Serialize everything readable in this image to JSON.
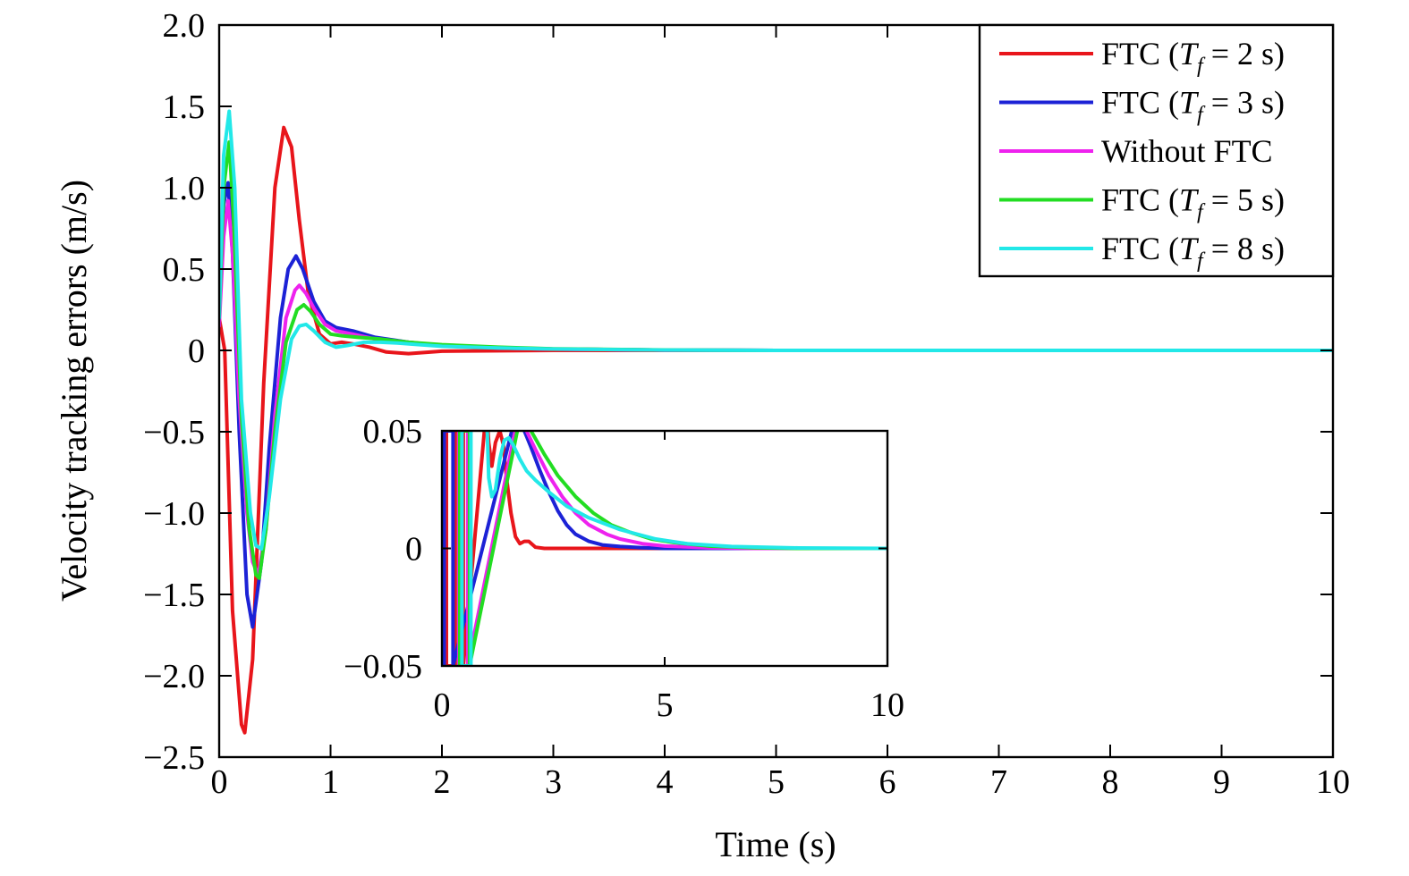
{
  "chart_data": {
    "type": "line",
    "xlabel": "Time (s)",
    "ylabel": "Velocity tracking errors (m/s)",
    "xlim": [
      0,
      10
    ],
    "ylim": [
      -2.5,
      2.0
    ],
    "xticks": [
      "0",
      "1",
      "2",
      "3",
      "4",
      "5",
      "6",
      "7",
      "8",
      "9",
      "10"
    ],
    "yticks": [
      "2.0",
      "1.5",
      "1.0",
      "0.5",
      "0",
      "−0.5",
      "−1.0",
      "−1.5",
      "−2.0",
      "−2.5"
    ],
    "ytick_values": [
      2.0,
      1.5,
      1.0,
      0.5,
      0,
      -0.5,
      -1.0,
      -1.5,
      -2.0,
      -2.5
    ],
    "grid": false,
    "legend_position": "top-right",
    "series": [
      {
        "name": "FTC (",
        "name_var": "T",
        "name_sub": "f",
        "name_tail": " = 2 s)",
        "color": "#e8151b",
        "x": [
          0,
          0.05,
          0.12,
          0.2,
          0.23,
          0.3,
          0.4,
          0.5,
          0.58,
          0.65,
          0.72,
          0.8,
          0.9,
          1.0,
          1.1,
          1.2,
          1.35,
          1.5,
          1.7,
          2.0,
          3.0,
          4.0,
          10.0
        ],
        "y": [
          0.2,
          0.0,
          -1.6,
          -2.3,
          -2.35,
          -1.9,
          -0.2,
          1.0,
          1.37,
          1.25,
          0.8,
          0.35,
          0.1,
          0.04,
          0.05,
          0.04,
          0.02,
          -0.01,
          -0.02,
          -0.005,
          0.0,
          0.0,
          0.0
        ]
      },
      {
        "name": "FTC (",
        "name_var": "T",
        "name_sub": "f",
        "name_tail": " = 3 s)",
        "color": "#1c22d6",
        "x": [
          0,
          0.04,
          0.08,
          0.12,
          0.18,
          0.25,
          0.3,
          0.38,
          0.45,
          0.55,
          0.62,
          0.69,
          0.75,
          0.85,
          0.95,
          1.05,
          1.2,
          1.4,
          1.7,
          2.0,
          2.5,
          3.0,
          4.0,
          5.0,
          10.0
        ],
        "y": [
          0.3,
          0.9,
          1.03,
          0.6,
          -0.5,
          -1.5,
          -1.7,
          -1.3,
          -0.6,
          0.2,
          0.5,
          0.58,
          0.5,
          0.3,
          0.18,
          0.14,
          0.12,
          0.08,
          0.05,
          0.03,
          0.015,
          0.008,
          0.002,
          0.0,
          0.0
        ]
      },
      {
        "name": "Without FTC",
        "name_var": "",
        "name_sub": "",
        "name_tail": "",
        "color": "#ee22ee",
        "x": [
          0,
          0.04,
          0.08,
          0.12,
          0.18,
          0.25,
          0.3,
          0.35,
          0.42,
          0.5,
          0.6,
          0.68,
          0.72,
          0.78,
          0.85,
          0.95,
          1.05,
          1.2,
          1.4,
          1.7,
          2.0,
          2.5,
          3.0,
          4.0,
          5.0,
          10.0
        ],
        "y": [
          0.15,
          0.7,
          0.92,
          0.6,
          -0.3,
          -1.0,
          -1.3,
          -1.38,
          -1.1,
          -0.4,
          0.2,
          0.37,
          0.4,
          0.35,
          0.26,
          0.16,
          0.12,
          0.1,
          0.07,
          0.05,
          0.03,
          0.015,
          0.008,
          0.002,
          0.0,
          0.0
        ]
      },
      {
        "name": "FTC (",
        "name_var": "T",
        "name_sub": "f",
        "name_tail": " = 5 s)",
        "color": "#22dd22",
        "x": [
          0,
          0.04,
          0.09,
          0.13,
          0.2,
          0.27,
          0.33,
          0.36,
          0.42,
          0.5,
          0.6,
          0.7,
          0.76,
          0.82,
          0.9,
          1.0,
          1.1,
          1.25,
          1.45,
          1.7,
          2.0,
          2.5,
          3.0,
          4.0,
          5.0,
          10.0
        ],
        "y": [
          0.2,
          1.0,
          1.28,
          0.8,
          -0.4,
          -1.1,
          -1.38,
          -1.4,
          -1.1,
          -0.5,
          0.05,
          0.25,
          0.28,
          0.24,
          0.16,
          0.1,
          0.09,
          0.08,
          0.07,
          0.05,
          0.035,
          0.02,
          0.01,
          0.003,
          0.0,
          0.0
        ]
      },
      {
        "name": "FTC (",
        "name_var": "T",
        "name_sub": "f",
        "name_tail": " = 8 s)",
        "color": "#22e8e8",
        "x": [
          0,
          0.04,
          0.09,
          0.14,
          0.2,
          0.28,
          0.33,
          0.38,
          0.45,
          0.55,
          0.65,
          0.72,
          0.78,
          0.85,
          0.95,
          1.05,
          1.15,
          1.3,
          1.45,
          1.6,
          1.8,
          2.0,
          2.5,
          3.0,
          4.0,
          5.0,
          10.0
        ],
        "y": [
          0.2,
          1.2,
          1.47,
          1.0,
          -0.3,
          -1.0,
          -1.2,
          -1.22,
          -0.9,
          -0.3,
          0.07,
          0.15,
          0.16,
          0.12,
          0.05,
          0.02,
          0.03,
          0.05,
          0.05,
          0.045,
          0.035,
          0.025,
          0.015,
          0.008,
          0.002,
          0.0,
          0.0
        ]
      }
    ],
    "inset": {
      "xlim": [
        0,
        10
      ],
      "ylim": [
        -0.05,
        0.05
      ],
      "xticks": [
        "0",
        "5",
        "10"
      ],
      "xtick_values": [
        0,
        5,
        10
      ],
      "yticks": [
        "0.05",
        "0",
        "−0.05"
      ],
      "ytick_values": [
        0.05,
        0,
        -0.05
      ],
      "series": [
        {
          "color": "#e8151b",
          "x": [
            0.1,
            0.1,
            0.3,
            0.3,
            0.48,
            0.48,
            1.0,
            1.05,
            1.12,
            1.2,
            1.3,
            1.38,
            1.45,
            1.55,
            1.65,
            1.75,
            1.85,
            1.95,
            2.1,
            2.3,
            2.5,
            3.0,
            4.0,
            10.0
          ],
          "y": [
            0.05,
            -0.05,
            -0.05,
            0.05,
            0.05,
            -0.05,
            0.06,
            0.045,
            0.035,
            0.045,
            0.05,
            0.044,
            0.03,
            0.015,
            0.005,
            0.002,
            0.003,
            0.003,
            0.0005,
            0.0,
            0.0,
            0.0,
            0.0,
            0.0
          ]
        },
        {
          "color": "#1c22d6",
          "x": [
            0.05,
            0.05,
            0.25,
            0.25,
            1.7,
            1.85,
            2.0,
            2.2,
            2.4,
            2.6,
            2.8,
            3.0,
            3.3,
            3.6,
            4.0,
            4.5,
            5.0,
            6.0,
            10.0
          ],
          "y": [
            -0.05,
            0.05,
            0.05,
            -0.05,
            0.06,
            0.05,
            0.043,
            0.033,
            0.024,
            0.016,
            0.01,
            0.006,
            0.003,
            0.0015,
            0.0008,
            0.0003,
            0.0,
            0.0,
            0.0
          ]
        },
        {
          "color": "#ee22ee",
          "x": [
            0.38,
            0.38,
            0.58,
            0.58,
            1.75,
            1.9,
            2.1,
            2.4,
            2.7,
            3.0,
            3.3,
            3.7,
            4.0,
            4.5,
            5.0,
            6.0,
            7.0,
            10.0
          ],
          "y": [
            -0.05,
            0.05,
            0.05,
            -0.05,
            0.06,
            0.05,
            0.042,
            0.031,
            0.022,
            0.015,
            0.01,
            0.006,
            0.004,
            0.002,
            0.001,
            0.0003,
            0.0,
            0.0
          ]
        },
        {
          "color": "#22dd22",
          "x": [
            0.4,
            0.4,
            0.62,
            0.62,
            1.8,
            2.0,
            2.3,
            2.6,
            3.0,
            3.4,
            3.8,
            4.2,
            4.7,
            5.2,
            6.0,
            7.0,
            8.0,
            10.0
          ],
          "y": [
            -0.05,
            0.05,
            0.05,
            -0.05,
            0.06,
            0.05,
            0.04,
            0.031,
            0.022,
            0.015,
            0.01,
            0.007,
            0.004,
            0.0025,
            0.001,
            0.0003,
            0.0,
            0.0
          ]
        },
        {
          "color": "#22e8e8",
          "x": [
            0.45,
            0.45,
            0.65,
            0.65,
            1.0,
            1.05,
            1.12,
            1.2,
            1.3,
            1.4,
            1.5,
            1.6,
            1.75,
            1.9,
            2.1,
            2.4,
            2.8,
            3.3,
            4.0,
            4.8,
            5.5,
            6.5,
            8.0,
            10.0
          ],
          "y": [
            0.05,
            -0.05,
            -0.05,
            0.05,
            0.06,
            0.03,
            0.022,
            0.025,
            0.038,
            0.046,
            0.047,
            0.044,
            0.038,
            0.033,
            0.029,
            0.024,
            0.018,
            0.013,
            0.008,
            0.004,
            0.002,
            0.0008,
            0.0002,
            0.0
          ]
        }
      ]
    }
  }
}
